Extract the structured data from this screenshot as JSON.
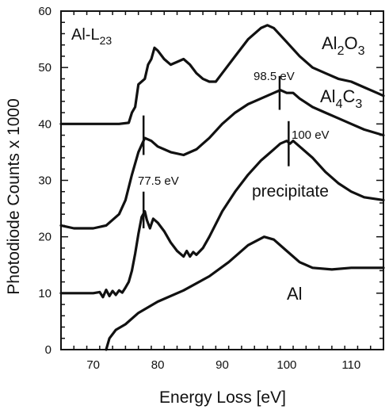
{
  "chart_data": {
    "type": "line",
    "xlabel": "Energy Loss [eV]",
    "ylabel": "Photodiode Counts x 1000",
    "xlim": [
      65,
      115
    ],
    "ylim": [
      0,
      60
    ],
    "xticks": [
      70,
      80,
      90,
      100,
      110
    ],
    "yticks": [
      0,
      10,
      20,
      30,
      40,
      50,
      60
    ],
    "grid": false,
    "legend": "none",
    "series": [
      {
        "name": "Al",
        "label_parts": [
          {
            "t": "Al",
            "sub": false
          }
        ],
        "points": [
          [
            72,
            0
          ],
          [
            72.5,
            2
          ],
          [
            73.5,
            3.5
          ],
          [
            75,
            4.5
          ],
          [
            77,
            6.5
          ],
          [
            80,
            8.5
          ],
          [
            84,
            10.5
          ],
          [
            88,
            13
          ],
          [
            91,
            15.5
          ],
          [
            94,
            18.5
          ],
          [
            96.5,
            20
          ],
          [
            98,
            19.5
          ],
          [
            100,
            17.5
          ],
          [
            102,
            15.5
          ],
          [
            104,
            14.5
          ],
          [
            107,
            14.2
          ],
          [
            110,
            14.5
          ],
          [
            115,
            14.5
          ]
        ]
      },
      {
        "name": "precipitate",
        "label_parts": [
          {
            "t": "precipitate",
            "sub": false
          }
        ],
        "points": [
          [
            65,
            10
          ],
          [
            70,
            10
          ],
          [
            71,
            10.2
          ],
          [
            71.5,
            9.3
          ],
          [
            72,
            10.6
          ],
          [
            72.5,
            9.5
          ],
          [
            73,
            10.4
          ],
          [
            73.5,
            9.7
          ],
          [
            74,
            10.5
          ],
          [
            74.5,
            10.1
          ],
          [
            75,
            11
          ],
          [
            75.5,
            12
          ],
          [
            76,
            14
          ],
          [
            76.5,
            17
          ],
          [
            77,
            20.5
          ],
          [
            77.5,
            23.5
          ],
          [
            78,
            24.5
          ],
          [
            78.3,
            23
          ],
          [
            78.8,
            21.5
          ],
          [
            79.3,
            23.2
          ],
          [
            80,
            22.5
          ],
          [
            81,
            21
          ],
          [
            82,
            19
          ],
          [
            83,
            17.5
          ],
          [
            84,
            16.5
          ],
          [
            84.5,
            17.5
          ],
          [
            85,
            16.5
          ],
          [
            85.5,
            17.3
          ],
          [
            86,
            16.8
          ],
          [
            87,
            18
          ],
          [
            88,
            20
          ],
          [
            90,
            24.5
          ],
          [
            92,
            28
          ],
          [
            94,
            31
          ],
          [
            96,
            33.5
          ],
          [
            97,
            34.5
          ],
          [
            98,
            35.5
          ],
          [
            99,
            36.5
          ],
          [
            100,
            37
          ],
          [
            100.5,
            36.5
          ],
          [
            101,
            37
          ],
          [
            102,
            36
          ],
          [
            104,
            34
          ],
          [
            106,
            31.5
          ],
          [
            108,
            29.5
          ],
          [
            110,
            28
          ],
          [
            112,
            27
          ],
          [
            115,
            26.5
          ]
        ]
      },
      {
        "name": "Al4C3",
        "label_parts": [
          {
            "t": "Al",
            "sub": false
          },
          {
            "t": "4",
            "sub": true
          },
          {
            "t": "C",
            "sub": false
          },
          {
            "t": "3",
            "sub": true
          }
        ],
        "points": [
          [
            65,
            22
          ],
          [
            67,
            21.5
          ],
          [
            70,
            21.5
          ],
          [
            72,
            22
          ],
          [
            74,
            24
          ],
          [
            75,
            26.5
          ],
          [
            76,
            31
          ],
          [
            77,
            35
          ],
          [
            78,
            37.5
          ],
          [
            79,
            37
          ],
          [
            80,
            36
          ],
          [
            82,
            35
          ],
          [
            84,
            34.5
          ],
          [
            86,
            35.5
          ],
          [
            88,
            37.5
          ],
          [
            90,
            40
          ],
          [
            92,
            42
          ],
          [
            94,
            43.5
          ],
          [
            96,
            44.5
          ],
          [
            98,
            45.5
          ],
          [
            99,
            46
          ],
          [
            100,
            45.5
          ],
          [
            101,
            45.5
          ],
          [
            102,
            44.5
          ],
          [
            104,
            43
          ],
          [
            106,
            42
          ],
          [
            108,
            41
          ],
          [
            110,
            40
          ],
          [
            112,
            39
          ],
          [
            115,
            38
          ]
        ]
      },
      {
        "name": "Al2O3",
        "label_parts": [
          {
            "t": "Al",
            "sub": false
          },
          {
            "t": "2",
            "sub": true
          },
          {
            "t": "O",
            "sub": false
          },
          {
            "t": "3",
            "sub": true
          }
        ],
        "points": [
          [
            65,
            40
          ],
          [
            70,
            40
          ],
          [
            74,
            40
          ],
          [
            75.5,
            40.2
          ],
          [
            76,
            42
          ],
          [
            76.5,
            43
          ],
          [
            77,
            47
          ],
          [
            78,
            48
          ],
          [
            78.5,
            50.5
          ],
          [
            79,
            51.5
          ],
          [
            79.5,
            53.5
          ],
          [
            80,
            53
          ],
          [
            81,
            51.5
          ],
          [
            82,
            50.5
          ],
          [
            83,
            51
          ],
          [
            84,
            51.5
          ],
          [
            85,
            50.5
          ],
          [
            86,
            49
          ],
          [
            87,
            48
          ],
          [
            88,
            47.5
          ],
          [
            89,
            47.5
          ],
          [
            90,
            49
          ],
          [
            92,
            52
          ],
          [
            94,
            55
          ],
          [
            96,
            57
          ],
          [
            97,
            57.5
          ],
          [
            98,
            57
          ],
          [
            100,
            54.5
          ],
          [
            102,
            52
          ],
          [
            104,
            50
          ],
          [
            106,
            49
          ],
          [
            108,
            48
          ],
          [
            110,
            47.5
          ],
          [
            112,
            46.5
          ],
          [
            114,
            45.5
          ],
          [
            115,
            45
          ]
        ]
      }
    ],
    "annotations": [
      {
        "name": "al-l23-label",
        "parts": [
          {
            "t": "Al-L",
            "sub": false
          },
          {
            "t": "23",
            "sub": true
          }
        ]
      },
      {
        "name": "peak-98-5-label",
        "parts": [
          {
            "t": "98.5 eV",
            "sub": false
          }
        ]
      },
      {
        "name": "peak-100-label",
        "parts": [
          {
            "t": "100 eV",
            "sub": false
          }
        ]
      },
      {
        "name": "peak-77-5-label",
        "parts": [
          {
            "t": "77.5 eV",
            "sub": false
          }
        ]
      }
    ],
    "markers": [
      {
        "name": "marker-98-5",
        "x": 98.9,
        "y_from": 42.5,
        "y_to": 48.5
      },
      {
        "name": "marker-100",
        "x": 100.3,
        "y_from": 32.5,
        "y_to": 40.5
      },
      {
        "name": "marker-77-5-al4c3",
        "x": 77.8,
        "y_from": 34.5,
        "y_to": 41.5
      },
      {
        "name": "marker-77-5-precipitate",
        "x": 77.8,
        "y_from": 21.5,
        "y_to": 28
      }
    ]
  }
}
